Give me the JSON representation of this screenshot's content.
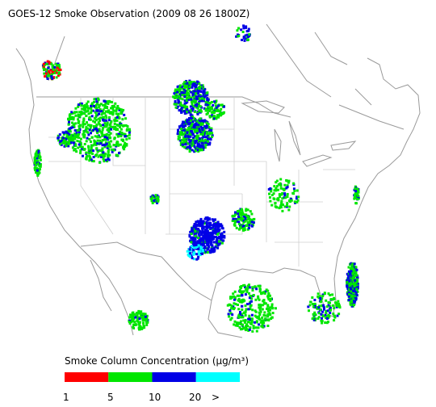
{
  "header": {
    "title": "GOES-12 Smoke Observation (2009 08 26  1800Z)"
  },
  "legend": {
    "title": "Smoke Column Concentration (μg/m³)",
    "colors": [
      "#ff0000",
      "#00e600",
      "#0000e6",
      "#00ffff"
    ],
    "ticks": [
      1,
      5,
      10,
      20,
      ">"
    ]
  }
}
